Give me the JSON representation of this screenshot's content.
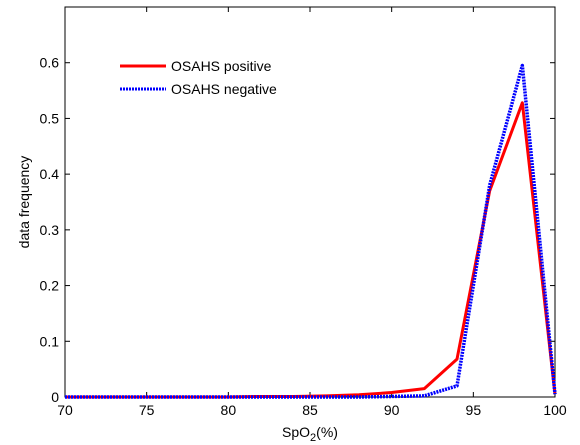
{
  "chart_data": {
    "type": "line",
    "xlabel_main": "SpO",
    "xlabel_sub": "2",
    "xlabel_suffix": "(%)",
    "ylabel": "data frequency",
    "xlim": [
      70,
      100
    ],
    "ylim": [
      0,
      0.7
    ],
    "xticks": [
      70,
      75,
      80,
      85,
      90,
      95,
      100
    ],
    "yticks": [
      0,
      0.1,
      0.2,
      0.3,
      0.4,
      0.5,
      0.6
    ],
    "grid": false,
    "legend_position": "top-left",
    "series": [
      {
        "name": "OSAHS positive",
        "color": "#ff0000",
        "style": "solid",
        "x": [
          70,
          72,
          74,
          76,
          78,
          80,
          82,
          84,
          86,
          88,
          90,
          92,
          94,
          96,
          98,
          100
        ],
        "y": [
          0,
          0,
          0,
          0,
          0,
          0,
          0.001,
          0.001,
          0.002,
          0.004,
          0.008,
          0.015,
          0.068,
          0.37,
          0.528,
          0.005
        ]
      },
      {
        "name": "OSAHS negative",
        "color": "#0000ff",
        "style": "dotted",
        "x": [
          70,
          72,
          74,
          76,
          78,
          80,
          82,
          84,
          86,
          88,
          90,
          92,
          94,
          96,
          98,
          100
        ],
        "y": [
          0,
          0,
          0,
          0,
          0,
          0,
          0,
          0,
          0,
          0,
          0.001,
          0.002,
          0.02,
          0.38,
          0.595,
          0.005
        ]
      }
    ]
  }
}
